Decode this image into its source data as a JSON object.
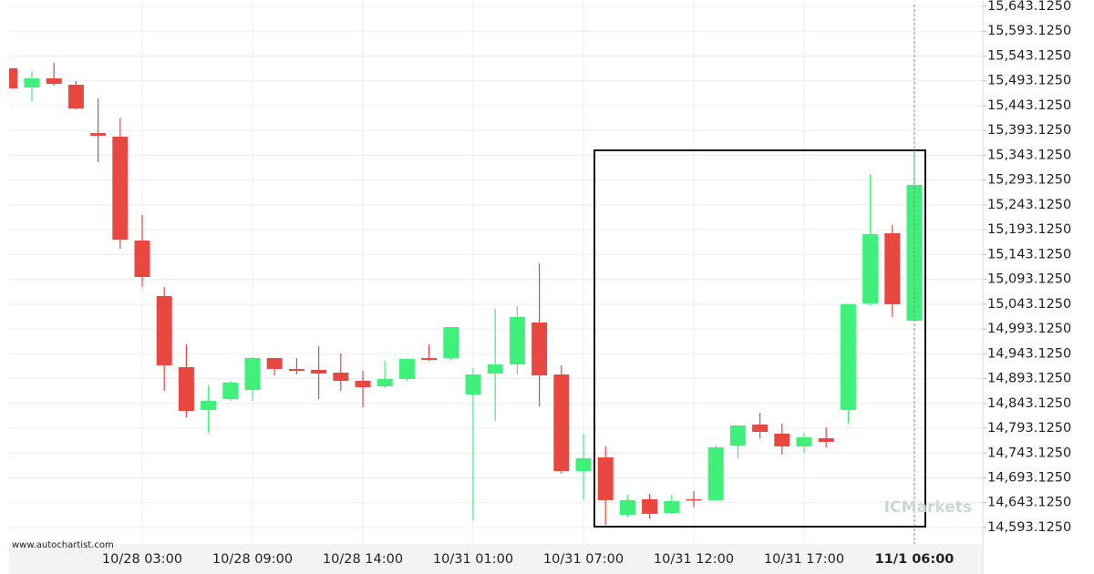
{
  "chart_data": {
    "type": "candlestick",
    "source": "www.autochartist.com",
    "watermark": "ICMarkets",
    "up_color": "#3ff07a",
    "down_color": "#e8483f",
    "grid": true,
    "categories": [
      null,
      null,
      null,
      null,
      null,
      null,
      "10/28 03:00",
      null,
      null,
      null,
      null,
      "10/28 09:00",
      null,
      null,
      null,
      null,
      "10/28 14:00",
      null,
      null,
      null,
      null,
      "10/31 01:00",
      null,
      null,
      null,
      null,
      "10/31 07:00",
      null,
      null,
      null,
      null,
      "10/31 12:00",
      null,
      null,
      null,
      null,
      "10/31 17:00",
      null,
      null,
      null,
      null,
      "11/1 06:00"
    ],
    "open": [
      15518.3,
      15479.7,
      15498.1,
      15485.2,
      15387.9,
      15380.6,
      15171.3,
      15059.4,
      14916.2,
      14829.9,
      14851.9,
      14870.3,
      14934.5,
      14912.5,
      14910.6,
      14905.1,
      14888.6,
      14877.6,
      14892.3,
      14934.5,
      14934.5,
      14861.1,
      14903.3,
      14921.7,
      15006.1,
      14901.5,
      14706.9,
      14734.5,
      14618.8,
      14650.1,
      14622.4,
      14650.1,
      14648.2,
      14758.3,
      14800.5,
      14782.2,
      14756.5,
      14773.0,
      14829.9,
      15044.7,
      15186.0,
      15009.8
    ],
    "high": [
      15518.3,
      15512.8,
      15529.3,
      15492.6,
      15457.7,
      15417.3,
      15222.7,
      15077.7,
      14962.1,
      14879.5,
      14888.6,
      14936.4,
      14934.5,
      14934.5,
      14958.4,
      14943.7,
      14908.8,
      14929.0,
      14934.5,
      14962.1,
      14996.9,
      14914.3,
      15033.7,
      15039.2,
      15125.5,
      14919.8,
      14782.2,
      14756.5,
      14659.2,
      14661.0,
      14659.2,
      14666.5,
      14758.3,
      14798.7,
      14824.4,
      14802.3,
      14784.0,
      14795.0,
      15044.7,
      15305.3,
      15202.5,
      15349.4
    ],
    "low": [
      15477.9,
      15452.2,
      15483.4,
      15435.7,
      15329.2,
      15154.8,
      15077.7,
      14868.5,
      14815.2,
      14784.0,
      14848.3,
      14848.3,
      14899.6,
      14901.5,
      14851.9,
      14868.5,
      14835.4,
      14874.0,
      14888.6,
      14929.0,
      14929.0,
      14607.8,
      14807.9,
      14901.5,
      14837.2,
      14701.4,
      14648.2,
      14598.6,
      14613.3,
      14611.5,
      14620.6,
      14633.5,
      14646.3,
      14732.6,
      14772.7,
      14740.0,
      14743.7,
      14754.6,
      14802.3,
      15041.0,
      15017.1,
      15009.8
    ],
    "close": [
      15477.9,
      15498.1,
      15487.1,
      15437.5,
      15382.4,
      15173.2,
      15097.9,
      14919.8,
      14828.0,
      14848.3,
      14885.0,
      14934.5,
      14912.5,
      14908.8,
      14903.3,
      14888.6,
      14875.8,
      14892.3,
      14932.7,
      14930.9,
      14996.9,
      14901.5,
      14921.7,
      15017.1,
      14899.6,
      14706.9,
      14732.6,
      14648.2,
      14648.2,
      14620.6,
      14646.3,
      14648.2,
      14754.6,
      14798.7,
      14785.8,
      14756.5,
      14774.8,
      14765.6,
      15042.9,
      15184.2,
      15042.9,
      15283.3
    ],
    "ylim": [
      14560,
      15656
    ],
    "yticks": [
      {
        "value": 15643.125,
        "label": "15,643.1250"
      },
      {
        "value": 15593.125,
        "label": "15,593.1250"
      },
      {
        "value": 15543.125,
        "label": "15,543.1250"
      },
      {
        "value": 15493.125,
        "label": "15,493.1250"
      },
      {
        "value": 15443.125,
        "label": "15,443.1250"
      },
      {
        "value": 15393.125,
        "label": "15,393.1250"
      },
      {
        "value": 15343.125,
        "label": "15,343.1250"
      },
      {
        "value": 15293.125,
        "label": "15,293.1250"
      },
      {
        "value": 15243.125,
        "label": "15,243.1250"
      },
      {
        "value": 15193.125,
        "label": "15,193.1250"
      },
      {
        "value": 15143.125,
        "label": "15,143.1250"
      },
      {
        "value": 15093.125,
        "label": "15,093.1250"
      },
      {
        "value": 15043.125,
        "label": "15,043.1250"
      },
      {
        "value": 14993.125,
        "label": "14,993.1250"
      },
      {
        "value": 14943.125,
        "label": "14,943.1250"
      },
      {
        "value": 14893.125,
        "label": "14,893.1250"
      },
      {
        "value": 14843.125,
        "label": "14,843.1250"
      },
      {
        "value": 14793.125,
        "label": "14,793.1250"
      },
      {
        "value": 14743.125,
        "label": "14,743.1250"
      },
      {
        "value": 14693.125,
        "label": "14,693.1250"
      },
      {
        "value": 14643.125,
        "label": "14,643.1250"
      },
      {
        "value": 14593.125,
        "label": "14,593.1250"
      }
    ]
  }
}
